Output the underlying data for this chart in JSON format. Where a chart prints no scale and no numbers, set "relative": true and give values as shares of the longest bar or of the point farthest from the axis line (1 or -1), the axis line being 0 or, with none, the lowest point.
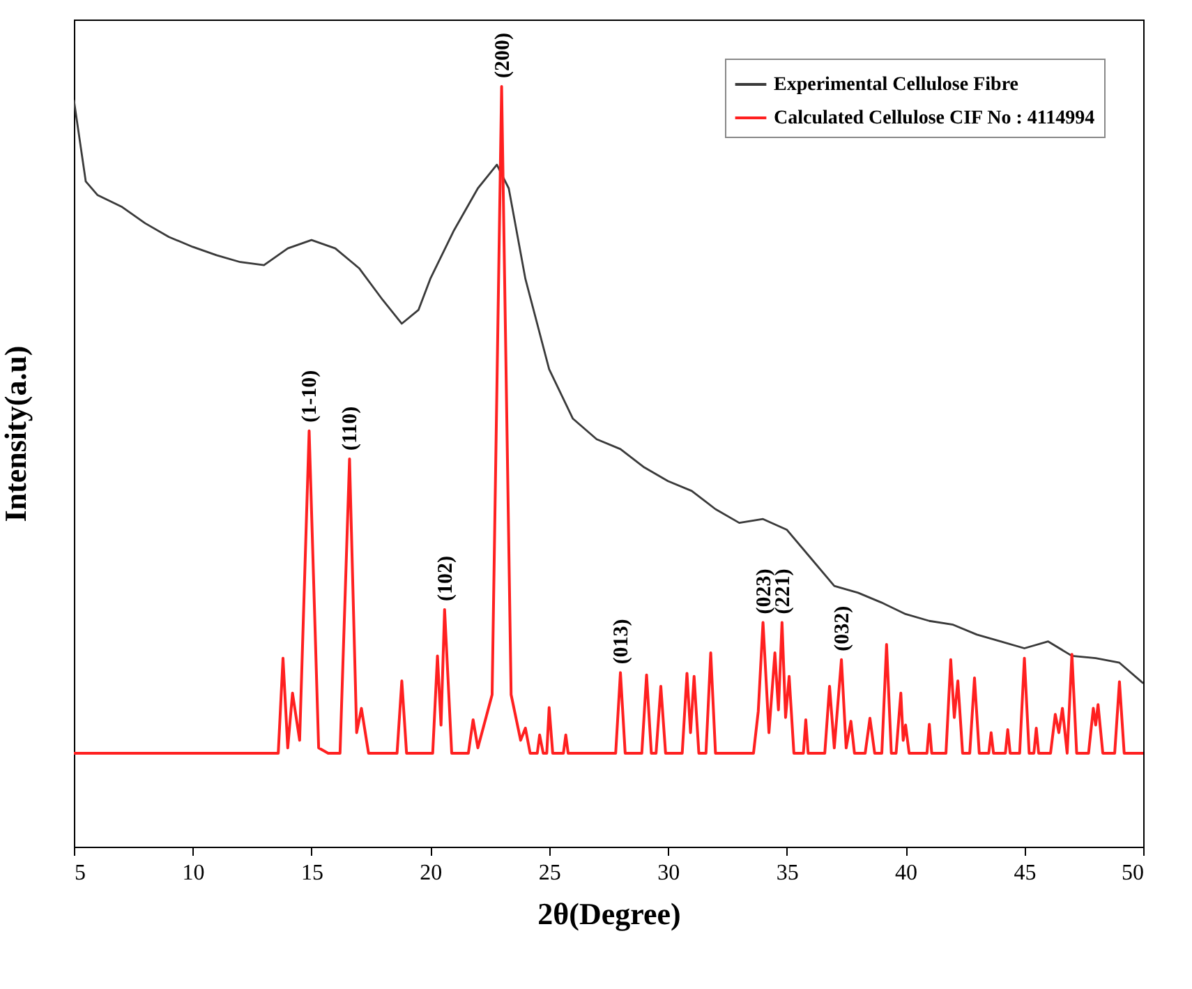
{
  "chart_data": {
    "type": "line",
    "relative": true,
    "xlabel": "2θ(Degree)",
    "ylabel": "Intensity(a.u)",
    "xlim": [
      5,
      50
    ],
    "xticks": [
      5,
      10,
      15,
      20,
      25,
      30,
      35,
      40,
      45,
      50
    ],
    "grid": false,
    "legend": "top right",
    "series": [
      {
        "name": "Experimental Cellulose Fibre",
        "color": "#3a3a3a",
        "x": [
          5,
          5.5,
          6,
          7,
          8,
          9,
          10,
          11,
          12,
          13,
          14,
          15,
          16,
          17,
          18,
          18.8,
          19.5,
          20,
          21,
          22,
          22.8,
          23.3,
          24,
          25,
          26,
          27,
          28,
          29,
          30,
          31,
          32,
          33,
          34,
          35,
          36,
          37,
          38,
          39,
          40,
          41,
          42,
          43,
          44,
          45,
          46,
          47,
          48,
          49,
          50
        ],
        "values": [
          0.982,
          0.875,
          0.857,
          0.842,
          0.82,
          0.802,
          0.789,
          0.778,
          0.769,
          0.765,
          0.787,
          0.798,
          0.787,
          0.761,
          0.719,
          0.688,
          0.706,
          0.747,
          0.811,
          0.866,
          0.897,
          0.866,
          0.747,
          0.628,
          0.563,
          0.536,
          0.523,
          0.499,
          0.481,
          0.468,
          0.444,
          0.426,
          0.431,
          0.417,
          0.38,
          0.343,
          0.334,
          0.321,
          0.306,
          0.297,
          0.292,
          0.279,
          0.27,
          0.261,
          0.27,
          0.251,
          0.248,
          0.242,
          0.215
        ]
      },
      {
        "name": "Calculated Cellulose CIF No : 4114994",
        "color": "#ff2020",
        "x": [
          5,
          13.6,
          13.8,
          14.0,
          14.2,
          14.5,
          14.9,
          15.3,
          15.7,
          16.2,
          16.6,
          16.9,
          17.1,
          17.4,
          18.6,
          18.8,
          19.0,
          20.1,
          20.3,
          20.45,
          20.6,
          20.9,
          21.6,
          21.8,
          22.0,
          22.6,
          23.0,
          23.4,
          23.8,
          24.0,
          24.2,
          24.5,
          24.6,
          24.75,
          24.9,
          25.0,
          25.15,
          25.6,
          25.7,
          25.8,
          27.8,
          28.0,
          28.2,
          28.9,
          29.1,
          29.3,
          29.5,
          29.7,
          29.9,
          30.6,
          30.8,
          30.95,
          31.1,
          31.3,
          31.6,
          31.8,
          32.0,
          33.6,
          33.8,
          34.0,
          34.25,
          34.5,
          34.65,
          34.8,
          34.95,
          35.1,
          35.3,
          35.7,
          35.8,
          35.9,
          36.6,
          36.8,
          37.0,
          37.3,
          37.5,
          37.7,
          37.85,
          38.3,
          38.5,
          38.7,
          39.0,
          39.2,
          39.4,
          39.6,
          39.8,
          39.9,
          40.0,
          40.15,
          40.9,
          41.0,
          41.1,
          41.7,
          41.9,
          42.05,
          42.2,
          42.4,
          42.7,
          42.9,
          43.1,
          43.5,
          43.6,
          43.7,
          44.2,
          44.3,
          44.4,
          44.8,
          45.0,
          45.2,
          45.4,
          45.5,
          45.6,
          46.1,
          46.3,
          46.45,
          46.6,
          46.8,
          47.0,
          47.2,
          47.7,
          47.9,
          48.0,
          48.1,
          48.3,
          48.8,
          49.0,
          49.2,
          50
        ],
        "values": [
          0.123,
          0.123,
          0.248,
          0.13,
          0.202,
          0.14,
          0.547,
          0.13,
          0.123,
          0.123,
          0.51,
          0.15,
          0.182,
          0.123,
          0.123,
          0.218,
          0.123,
          0.123,
          0.251,
          0.16,
          0.312,
          0.123,
          0.123,
          0.167,
          0.13,
          0.2,
          1.0,
          0.2,
          0.14,
          0.156,
          0.123,
          0.123,
          0.147,
          0.123,
          0.123,
          0.183,
          0.123,
          0.123,
          0.147,
          0.123,
          0.123,
          0.229,
          0.123,
          0.123,
          0.226,
          0.123,
          0.123,
          0.211,
          0.123,
          0.123,
          0.228,
          0.15,
          0.224,
          0.123,
          0.123,
          0.255,
          0.123,
          0.123,
          0.178,
          0.295,
          0.15,
          0.255,
          0.18,
          0.295,
          0.17,
          0.224,
          0.123,
          0.123,
          0.167,
          0.123,
          0.123,
          0.211,
          0.13,
          0.246,
          0.13,
          0.165,
          0.123,
          0.123,
          0.169,
          0.123,
          0.123,
          0.266,
          0.123,
          0.123,
          0.202,
          0.14,
          0.16,
          0.123,
          0.123,
          0.161,
          0.123,
          0.123,
          0.246,
          0.17,
          0.218,
          0.123,
          0.123,
          0.222,
          0.123,
          0.123,
          0.15,
          0.123,
          0.123,
          0.154,
          0.123,
          0.123,
          0.248,
          0.123,
          0.123,
          0.156,
          0.123,
          0.123,
          0.174,
          0.15,
          0.182,
          0.123,
          0.253,
          0.123,
          0.123,
          0.182,
          0.16,
          0.187,
          0.123,
          0.123,
          0.217,
          0.123,
          0.123
        ]
      }
    ],
    "annotations": [
      {
        "text": "(1-10)",
        "x": 14.9,
        "y": 0.547
      },
      {
        "text": "(110)",
        "x": 16.6,
        "y": 0.51
      },
      {
        "text": "(102)",
        "x": 20.6,
        "y": 0.312
      },
      {
        "text": "(200)",
        "x": 23.0,
        "y": 1.0
      },
      {
        "text": "(013)",
        "x": 28.0,
        "y": 0.229
      },
      {
        "text": "(023)",
        "x": 34.0,
        "y": 0.295
      },
      {
        "text": "(221)",
        "x": 34.8,
        "y": 0.295
      },
      {
        "text": "(032)",
        "x": 37.3,
        "y": 0.246
      }
    ]
  }
}
